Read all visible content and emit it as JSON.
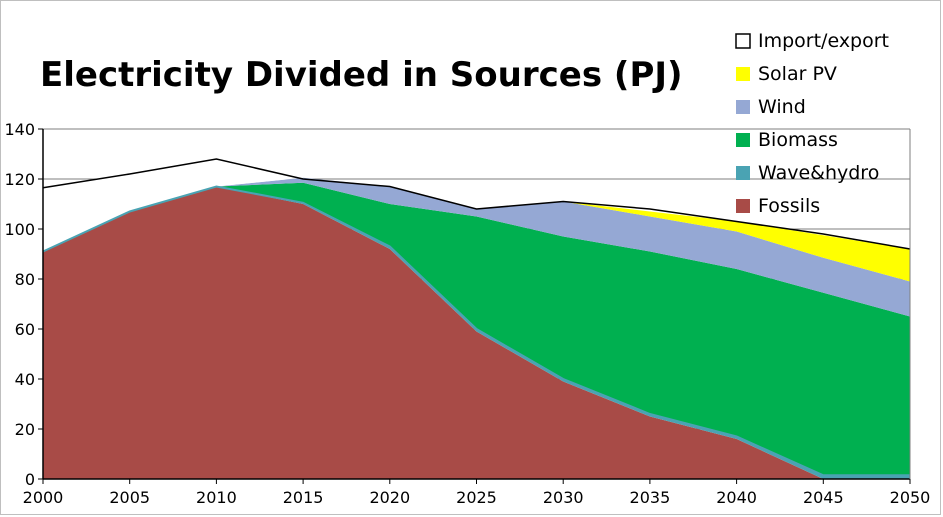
{
  "chart_data": {
    "type": "area",
    "title": "Electricity Divided in Sources (PJ)",
    "xlabel": "",
    "ylabel": "",
    "x": [
      2000,
      2005,
      2010,
      2015,
      2020,
      2025,
      2030,
      2035,
      2040,
      2045,
      2050
    ],
    "xticks": [
      "2000",
      "2005",
      "2010",
      "2015",
      "2020",
      "2025",
      "2030",
      "2035",
      "2040",
      "2045",
      "2050"
    ],
    "ylim": [
      0,
      140
    ],
    "yticks": [
      "0",
      "20",
      "40",
      "60",
      "80",
      "100",
      "120",
      "140"
    ],
    "grid": "horizontal",
    "legend_position": "top-right",
    "stacked": true,
    "series": [
      {
        "name": "Fossils",
        "color": "#a84b47",
        "values": [
          91,
          107,
          117,
          110,
          92,
          59,
          39,
          25,
          16,
          0,
          0
        ]
      },
      {
        "name": "Wave&hydro",
        "color": "#4aa3b3",
        "values": [
          0,
          0,
          0,
          0.5,
          1,
          1,
          1,
          1,
          1,
          1.5,
          1.5
        ]
      },
      {
        "name": "Biomass",
        "color": "#00b050",
        "values": [
          0,
          0,
          0,
          8,
          17,
          45,
          57,
          65,
          67,
          73,
          63.5
        ]
      },
      {
        "name": "Wind",
        "color": "#95a8d4",
        "values": [
          0,
          0,
          0,
          2,
          7,
          3,
          14,
          14,
          15,
          14,
          14
        ]
      },
      {
        "name": "Solar PV",
        "color": "#ffff00",
        "values": [
          0,
          0,
          0,
          0,
          0,
          0,
          0,
          2,
          4,
          9,
          13
        ]
      },
      {
        "name": "Import/export",
        "color": "#ffffff",
        "values": [
          26,
          15,
          11,
          0,
          0,
          0,
          0,
          0,
          0,
          0,
          0
        ]
      }
    ],
    "total_line": [
      116.5,
      122,
      128,
      120,
      117,
      108,
      111,
      108,
      103,
      98,
      92
    ]
  }
}
